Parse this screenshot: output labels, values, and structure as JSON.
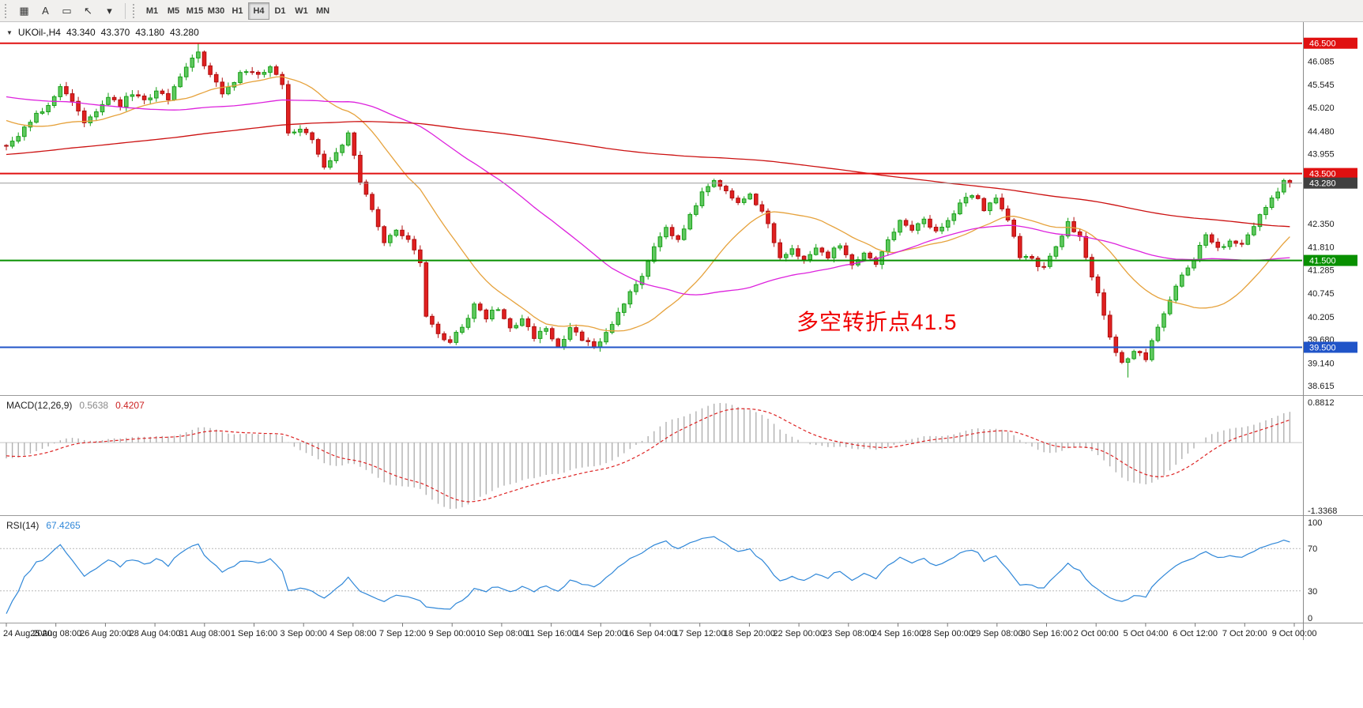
{
  "window": {
    "toolbar": {
      "tools": [
        {
          "name": "chart-grid-tool",
          "glyph": "▦"
        },
        {
          "name": "text-tool",
          "glyph": "A"
        },
        {
          "name": "text-label-tool",
          "glyph": "▭"
        },
        {
          "name": "arrow-objects-tool",
          "glyph": "↖"
        },
        {
          "name": "arrow-objects-dropdown",
          "glyph": "▾"
        }
      ],
      "timeframes": [
        "M1",
        "M5",
        "M15",
        "M30",
        "H1",
        "H4",
        "D1",
        "W1",
        "MN"
      ],
      "active_timeframe": "H4"
    }
  },
  "chart_data": {
    "type": "candlestick",
    "symbol": "UKOil-,H4",
    "timeframe": "H4",
    "ohlc_display": [
      "43.340",
      "43.370",
      "43.180",
      "43.280"
    ],
    "last_ohlc": [
      43.34,
      43.37,
      43.18,
      43.28
    ],
    "ylim": [
      38.4,
      46.95
    ],
    "bars": 215,
    "prehistory_bars": 220,
    "wick_seed": 987654321,
    "close_anchors": [
      [
        0,
        44.1
      ],
      [
        2,
        44.35
      ],
      [
        4,
        44.7
      ],
      [
        7,
        45.1
      ],
      [
        9,
        45.45
      ],
      [
        11,
        45.2
      ],
      [
        13,
        44.65
      ],
      [
        15,
        44.95
      ],
      [
        17,
        45.25
      ],
      [
        19,
        45.1
      ],
      [
        21,
        45.35
      ],
      [
        23,
        45.15
      ],
      [
        25,
        45.45
      ],
      [
        27,
        45.25
      ],
      [
        29,
        45.7
      ],
      [
        31,
        46.1
      ],
      [
        32,
        46.3
      ],
      [
        34,
        45.75
      ],
      [
        36,
        45.35
      ],
      [
        38,
        45.65
      ],
      [
        40,
        45.9
      ],
      [
        42,
        45.75
      ],
      [
        44,
        45.95
      ],
      [
        46,
        45.6
      ],
      [
        47,
        44.45
      ],
      [
        49,
        44.55
      ],
      [
        51,
        44.3
      ],
      [
        53,
        43.7
      ],
      [
        55,
        44.0
      ],
      [
        57,
        44.4
      ],
      [
        59,
        43.35
      ],
      [
        61,
        42.65
      ],
      [
        63,
        41.95
      ],
      [
        65,
        42.25
      ],
      [
        67,
        42.0
      ],
      [
        69,
        41.4
      ],
      [
        70,
        40.2
      ],
      [
        72,
        39.85
      ],
      [
        74,
        39.6
      ],
      [
        76,
        40.0
      ],
      [
        78,
        40.45
      ],
      [
        80,
        40.2
      ],
      [
        82,
        40.4
      ],
      [
        84,
        39.95
      ],
      [
        86,
        40.1
      ],
      [
        88,
        39.75
      ],
      [
        90,
        39.95
      ],
      [
        92,
        39.55
      ],
      [
        94,
        39.9
      ],
      [
        96,
        39.7
      ],
      [
        98,
        39.45
      ],
      [
        100,
        39.8
      ],
      [
        102,
        40.3
      ],
      [
        104,
        40.75
      ],
      [
        106,
        41.1
      ],
      [
        108,
        41.85
      ],
      [
        110,
        42.3
      ],
      [
        112,
        41.95
      ],
      [
        114,
        42.5
      ],
      [
        116,
        43.1
      ],
      [
        118,
        43.3
      ],
      [
        120,
        43.1
      ],
      [
        122,
        42.8
      ],
      [
        124,
        43.05
      ],
      [
        126,
        42.6
      ],
      [
        127,
        42.3
      ],
      [
        129,
        41.55
      ],
      [
        131,
        41.75
      ],
      [
        133,
        41.55
      ],
      [
        135,
        41.8
      ],
      [
        137,
        41.6
      ],
      [
        139,
        41.85
      ],
      [
        141,
        41.4
      ],
      [
        143,
        41.7
      ],
      [
        145,
        41.35
      ],
      [
        147,
        41.95
      ],
      [
        149,
        42.4
      ],
      [
        151,
        42.2
      ],
      [
        153,
        42.45
      ],
      [
        155,
        42.2
      ],
      [
        157,
        42.4
      ],
      [
        159,
        42.85
      ],
      [
        161,
        43.05
      ],
      [
        163,
        42.7
      ],
      [
        165,
        42.9
      ],
      [
        167,
        42.45
      ],
      [
        169,
        41.6
      ],
      [
        171,
        41.5
      ],
      [
        173,
        41.3
      ],
      [
        175,
        41.85
      ],
      [
        177,
        42.35
      ],
      [
        179,
        42.0
      ],
      [
        180,
        41.55
      ],
      [
        182,
        40.7
      ],
      [
        184,
        39.7
      ],
      [
        186,
        39.1
      ],
      [
        188,
        39.45
      ],
      [
        190,
        39.25
      ],
      [
        192,
        39.95
      ],
      [
        194,
        40.6
      ],
      [
        196,
        41.15
      ],
      [
        198,
        41.5
      ],
      [
        200,
        42.15
      ],
      [
        202,
        41.75
      ],
      [
        204,
        42.0
      ],
      [
        206,
        41.9
      ],
      [
        208,
        42.3
      ],
      [
        210,
        42.75
      ],
      [
        212,
        43.1
      ],
      [
        213,
        43.35
      ],
      [
        214,
        43.28
      ]
    ],
    "prehistory_anchors": [
      [
        -220,
        41.8
      ],
      [
        -160,
        42.6
      ],
      [
        -100,
        43.9
      ],
      [
        -60,
        45.2
      ],
      [
        -35,
        45.9
      ],
      [
        -18,
        45.1
      ],
      [
        -6,
        44.6
      ],
      [
        -1,
        44.15
      ]
    ],
    "moving_averages": [
      {
        "period": 21,
        "type": "sma",
        "color": "#e6a23c"
      },
      {
        "period": 55,
        "type": "sma",
        "color": "#dd22dd"
      },
      {
        "period": 200,
        "type": "sma",
        "color": "#cc1111"
      }
    ],
    "horizontal_levels": [
      {
        "price": 46.5,
        "label": "46.500",
        "color": "#e01010",
        "width": 2
      },
      {
        "price": 43.5,
        "label": "43.500",
        "color": "#e01010",
        "width": 2
      },
      {
        "price": 43.28,
        "label": "43.280",
        "color": "#9a9a9a",
        "width": 1,
        "badge": "#404040"
      },
      {
        "price": 41.5,
        "label": "41.500",
        "color": "#089000",
        "width": 2
      },
      {
        "price": 39.5,
        "label": "39.500",
        "color": "#2054c8",
        "width": 2
      }
    ],
    "price_axis_labels": [
      "46.085",
      "45.545",
      "45.020",
      "44.480",
      "43.955",
      "42.350",
      "41.810",
      "41.285",
      "40.745",
      "40.205",
      "39.680",
      "39.140",
      "38.615"
    ],
    "time_axis_labels": [
      "24 Aug 2020",
      "25 Aug 08:00",
      "26 Aug 20:00",
      "28 Aug 04:00",
      "31 Aug 08:00",
      "1 Sep 16:00",
      "3 Sep 00:00",
      "4 Sep 08:00",
      "7 Sep 12:00",
      "9 Sep 00:00",
      "10 Sep 08:00",
      "11 Sep 16:00",
      "14 Sep 20:00",
      "16 Sep 04:00",
      "17 Sep 12:00",
      "18 Sep 20:00",
      "22 Sep 00:00",
      "23 Sep 08:00",
      "24 Sep 16:00",
      "28 Sep 00:00",
      "29 Sep 08:00",
      "30 Sep 16:00",
      "2 Oct 00:00",
      "5 Oct 04:00",
      "6 Oct 12:00",
      "7 Oct 20:00",
      "9 Oct 00:00"
    ],
    "annotation": {
      "text": "多空转折点41.5",
      "color": "#f00000"
    },
    "candle_colors": {
      "up_fill": "#5fc85f",
      "up_stroke": "#18a018",
      "down_fill": "#e02020",
      "down_stroke": "#b01010"
    },
    "indicators": {
      "macd": {
        "label": "MACD(12,26,9)",
        "fast": 12,
        "slow": 26,
        "signal": 9,
        "value_main": "0.5638",
        "value_signal": "0.4207",
        "axis_max": "0.8812",
        "axis_min": "-1.3368",
        "hist_color": "#b0b0b0",
        "signal_color": "#dd2222"
      },
      "rsi": {
        "label": "RSI(14)",
        "period": 14,
        "value": "67.4265",
        "levels": [
          "100",
          "70",
          "30",
          "0"
        ],
        "line_color": "#2f87d8"
      }
    }
  }
}
